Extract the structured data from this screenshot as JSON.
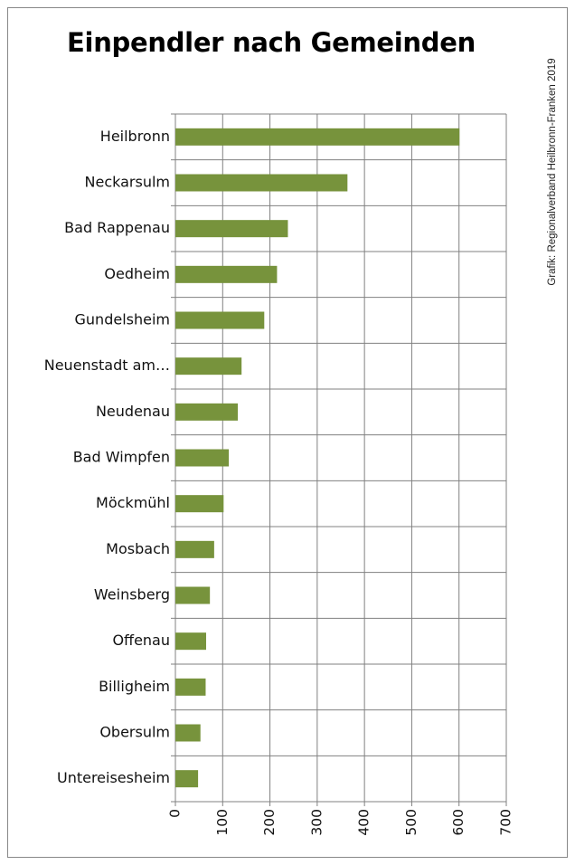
{
  "title": "Einpendler nach Gemeinden",
  "credit": "Grafik: Regionalverband Heilbronn-Franken 2019",
  "colors": {
    "bar": "#77933c",
    "grid": "#808080",
    "frame": "#888888"
  },
  "chart_data": {
    "type": "bar",
    "orientation": "horizontal",
    "title": "Einpendler nach Gemeinden",
    "xlabel": "",
    "ylabel": "",
    "categories": [
      "Heilbronn",
      "Neckarsulm",
      "Bad Rappenau",
      "Oedheim",
      "Gundelsheim",
      "Neuenstadt am…",
      "Neudenau",
      "Bad Wimpfen",
      "Möckmühl",
      "Mosbach",
      "Weinsberg",
      "Offenau",
      "Billigheim",
      "Obersulm",
      "Untereisesheim"
    ],
    "values": [
      601,
      364,
      238,
      215,
      188,
      140,
      132,
      113,
      102,
      82,
      73,
      65,
      64,
      53,
      48
    ],
    "xlim": [
      0,
      700
    ],
    "xticks": [
      "0",
      "100",
      "200",
      "300",
      "400",
      "500",
      "600",
      "700"
    ],
    "grid": true,
    "legend": "none"
  }
}
